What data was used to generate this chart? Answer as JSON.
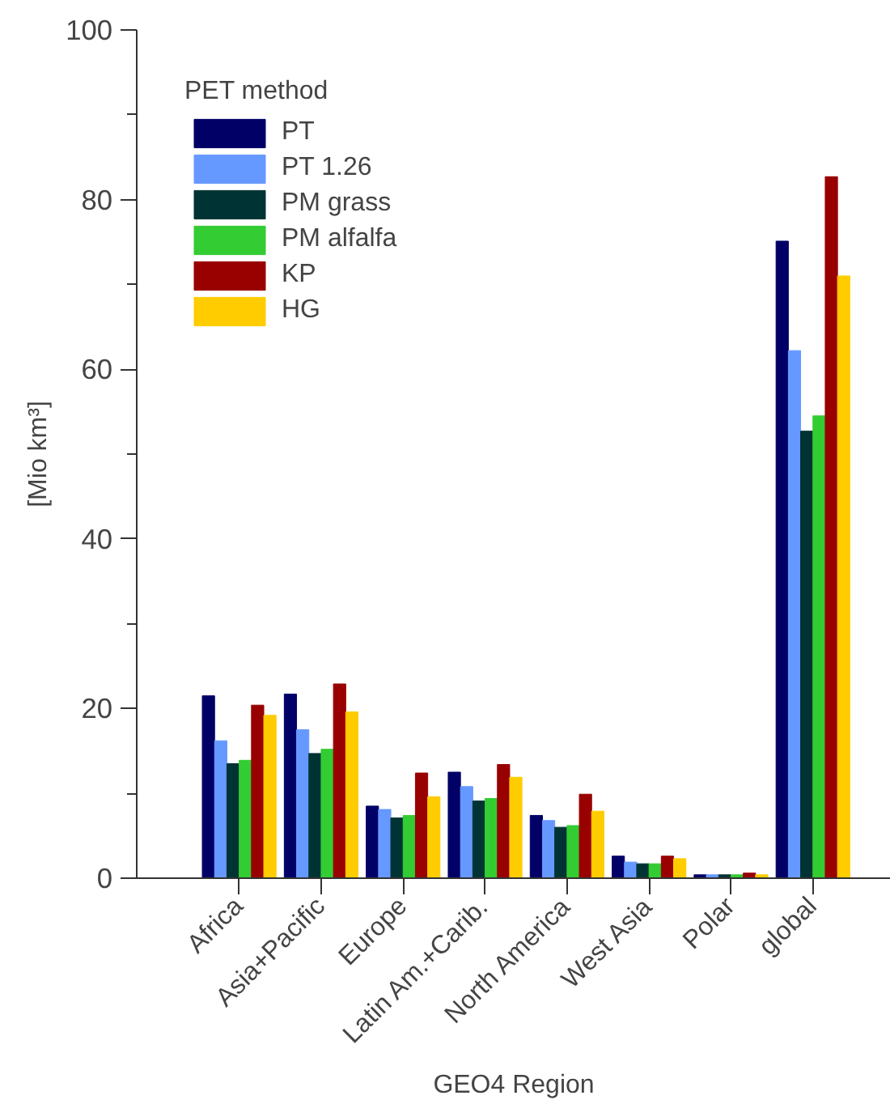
{
  "chart_data": {
    "type": "bar",
    "xlabel": "GEO4 Region",
    "ylabel": "[Mio km³]",
    "legend_title": "PET method",
    "legend": "top left",
    "grid": false,
    "categories": [
      "Africa",
      "Asia+Pacific",
      "Europe",
      "Latin Am.+Carib.",
      "North America",
      "West Asia",
      "Polar",
      "global"
    ],
    "ylim": [
      0,
      100
    ],
    "yticks": [
      0,
      {
        "value": 10,
        "label": null
      },
      20,
      {
        "value": 30,
        "label": null
      },
      40,
      {
        "value": 50,
        "label": null
      },
      60,
      {
        "value": 70,
        "label": null
      },
      80,
      {
        "value": 90,
        "label": null
      },
      100
    ],
    "series": [
      {
        "name": "PT",
        "color": "#000066",
        "values": [
          21.5,
          21.7,
          8.5,
          12.5,
          7.4,
          2.6,
          0.4,
          75.1
        ]
      },
      {
        "name": "PT 1.26",
        "color": "#6699ff",
        "values": [
          16.2,
          17.5,
          8.1,
          10.8,
          6.8,
          1.9,
          0.4,
          62.2
        ]
      },
      {
        "name": "PM grass",
        "color": "#003333",
        "values": [
          13.5,
          14.7,
          7.1,
          9.1,
          6.0,
          1.7,
          0.4,
          52.7
        ]
      },
      {
        "name": "PM alfalfa",
        "color": "#33cc33",
        "values": [
          13.9,
          15.2,
          7.4,
          9.4,
          6.2,
          1.7,
          0.4,
          54.5
        ]
      },
      {
        "name": "KP",
        "color": "#990000",
        "values": [
          20.4,
          22.9,
          12.4,
          13.4,
          9.9,
          2.6,
          0.6,
          82.7
        ]
      },
      {
        "name": "HG",
        "color": "#ffcc00",
        "values": [
          19.2,
          19.6,
          9.6,
          11.9,
          7.9,
          2.3,
          0.4,
          71.0
        ]
      }
    ]
  }
}
